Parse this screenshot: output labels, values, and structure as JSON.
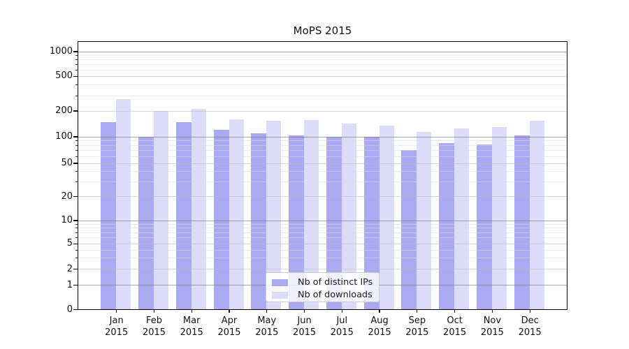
{
  "title": "MoPS 2015",
  "chart_data": {
    "type": "bar",
    "title": "MoPS 2015",
    "categories": [
      "Jan",
      "Feb",
      "Mar",
      "Apr",
      "May",
      "Jun",
      "Jul",
      "Aug",
      "Sep",
      "Oct",
      "Nov",
      "Dec"
    ],
    "category_year": "2015",
    "series": [
      {
        "name": "Nb of distinct IPs",
        "color": "#aaaaf3",
        "values": [
          148,
          100,
          148,
          120,
          108,
          103,
          100,
          100,
          70,
          84,
          81,
          103
        ]
      },
      {
        "name": "Nb of downloads",
        "color": "#dcdcf8",
        "values": [
          270,
          200,
          210,
          157,
          152,
          156,
          141,
          135,
          114,
          124,
          129,
          152
        ]
      }
    ],
    "y_axis": {
      "scale": "symlog",
      "tick_labels": [
        "1000",
        "500",
        "200",
        "100",
        "50",
        "20",
        "10",
        "5",
        "2",
        "1",
        "0"
      ],
      "tick_values": [
        1000,
        500,
        200,
        100,
        50,
        20,
        10,
        5,
        2,
        1,
        0
      ],
      "major_tick_values": [
        1,
        10,
        100,
        1000
      ],
      "ylim_bottom": 0
    },
    "legend": {
      "position": "lower center",
      "items": [
        "Nb of distinct IPs",
        "Nb of downloads"
      ]
    },
    "grid": true
  }
}
